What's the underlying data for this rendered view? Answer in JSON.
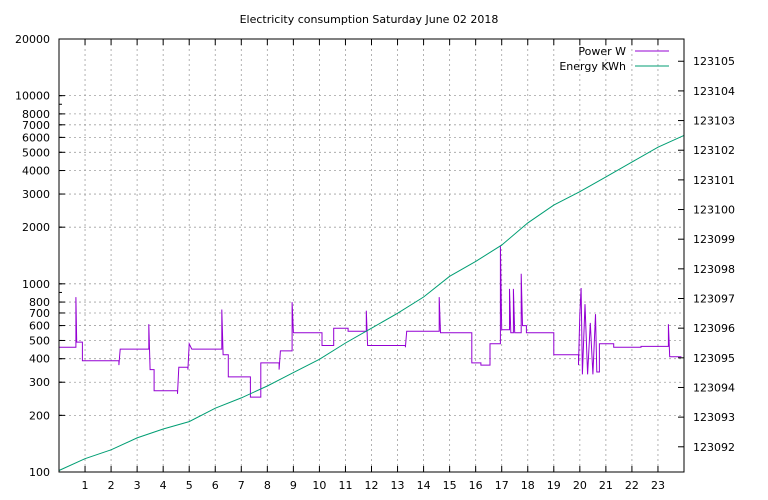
{
  "chart_data": {
    "type": "line",
    "title": "Electricity consumption Saturday June 02 2018",
    "x_ticks": [
      "1",
      "2",
      "3",
      "4",
      "5",
      "6",
      "7",
      "8",
      "9",
      "10",
      "11",
      "12",
      "13",
      "14",
      "15",
      "16",
      "17",
      "18",
      "19",
      "20",
      "21",
      "22",
      "23"
    ],
    "xlim": [
      0,
      24
    ],
    "y_left": {
      "scale": "log",
      "ylim": [
        100,
        20000
      ],
      "ticks": [
        "100",
        "200",
        "300",
        "400",
        "500",
        "600",
        "700",
        "800",
        "1000",
        "2000",
        "3000",
        "4000",
        "5000",
        "6000",
        "7000",
        "8000",
        "10000",
        "20000"
      ]
    },
    "y_right": {
      "ylim": [
        123091.15,
        123105.75
      ],
      "ticks": [
        "123092",
        "123093",
        "123094",
        "123095",
        "123096",
        "123097",
        "123098",
        "123099",
        "123100",
        "123101",
        "123102",
        "123103",
        "123104",
        "123105"
      ]
    },
    "grid": true,
    "legend_position": "top-right",
    "series": [
      {
        "name": "Power W",
        "axis": "left",
        "color": "#9400d3",
        "step": true,
        "points": [
          [
            0,
            460
          ],
          [
            0.65,
            460
          ],
          [
            0.65,
            850
          ],
          [
            0.68,
            490
          ],
          [
            0.9,
            490
          ],
          [
            0.9,
            390
          ],
          [
            2.3,
            390
          ],
          [
            2.3,
            370
          ],
          [
            2.35,
            450
          ],
          [
            3.45,
            450
          ],
          [
            3.45,
            610
          ],
          [
            3.5,
            350
          ],
          [
            3.65,
            350
          ],
          [
            3.65,
            270
          ],
          [
            4.55,
            270
          ],
          [
            4.55,
            260
          ],
          [
            4.6,
            360
          ],
          [
            4.95,
            360
          ],
          [
            4.95,
            350
          ],
          [
            5.0,
            480
          ],
          [
            5.1,
            450
          ],
          [
            6.25,
            450
          ],
          [
            6.25,
            730
          ],
          [
            6.3,
            420
          ],
          [
            6.5,
            420
          ],
          [
            6.5,
            320
          ],
          [
            7.35,
            320
          ],
          [
            7.35,
            250
          ],
          [
            7.75,
            250
          ],
          [
            7.75,
            380
          ],
          [
            8.45,
            380
          ],
          [
            8.45,
            350
          ],
          [
            8.5,
            440
          ],
          [
            8.95,
            440
          ],
          [
            8.95,
            800
          ],
          [
            9.0,
            550
          ],
          [
            10.1,
            550
          ],
          [
            10.1,
            470
          ],
          [
            10.55,
            470
          ],
          [
            10.55,
            580
          ],
          [
            11.1,
            580
          ],
          [
            11.1,
            560
          ],
          [
            11.8,
            560
          ],
          [
            11.8,
            720
          ],
          [
            11.85,
            470
          ],
          [
            13.3,
            470
          ],
          [
            13.3,
            460
          ],
          [
            13.35,
            560
          ],
          [
            14.6,
            560
          ],
          [
            14.6,
            850
          ],
          [
            14.65,
            550
          ],
          [
            15.85,
            550
          ],
          [
            15.85,
            380
          ],
          [
            16.2,
            380
          ],
          [
            16.2,
            370
          ],
          [
            16.55,
            370
          ],
          [
            16.55,
            480
          ],
          [
            16.95,
            480
          ],
          [
            16.95,
            1600
          ],
          [
            17.0,
            570
          ],
          [
            17.3,
            570
          ],
          [
            17.3,
            940
          ],
          [
            17.35,
            550
          ],
          [
            17.45,
            550
          ],
          [
            17.45,
            940
          ],
          [
            17.5,
            550
          ],
          [
            17.75,
            550
          ],
          [
            17.75,
            1130
          ],
          [
            17.8,
            600
          ],
          [
            17.95,
            600
          ],
          [
            17.95,
            550
          ],
          [
            19.0,
            550
          ],
          [
            19.0,
            420
          ],
          [
            19.95,
            420
          ],
          [
            19.95,
            370
          ],
          [
            20.0,
            680
          ],
          [
            20.05,
            950
          ],
          [
            20.1,
            330
          ],
          [
            20.2,
            780
          ],
          [
            20.3,
            330
          ],
          [
            20.4,
            620
          ],
          [
            20.5,
            330
          ],
          [
            20.6,
            690
          ],
          [
            20.65,
            340
          ],
          [
            20.75,
            340
          ],
          [
            20.75,
            480
          ],
          [
            21.3,
            480
          ],
          [
            21.3,
            460
          ],
          [
            22.35,
            460
          ],
          [
            22.35,
            465
          ],
          [
            23.4,
            465
          ],
          [
            23.4,
            610
          ],
          [
            23.45,
            410
          ],
          [
            23.9,
            410
          ]
        ]
      },
      {
        "name": "Energy KWh",
        "axis": "right",
        "color": "#009e73",
        "step": false,
        "points": [
          [
            0,
            123091.2
          ],
          [
            1,
            123091.6
          ],
          [
            2,
            123091.9
          ],
          [
            3,
            123092.3
          ],
          [
            4,
            123092.6
          ],
          [
            5,
            123092.85
          ],
          [
            6,
            123093.3
          ],
          [
            7,
            123093.65
          ],
          [
            8,
            123094.05
          ],
          [
            9,
            123094.5
          ],
          [
            10,
            123094.95
          ],
          [
            11,
            123095.5
          ],
          [
            12,
            123096.0
          ],
          [
            13,
            123096.5
          ],
          [
            14,
            123097.05
          ],
          [
            15,
            123097.75
          ],
          [
            16,
            123098.25
          ],
          [
            17,
            123098.8
          ],
          [
            18,
            123099.55
          ],
          [
            19,
            123100.15
          ],
          [
            20,
            123100.6
          ],
          [
            21,
            123101.1
          ],
          [
            22,
            123101.6
          ],
          [
            23,
            123102.1
          ],
          [
            24,
            123102.5
          ]
        ]
      }
    ]
  }
}
